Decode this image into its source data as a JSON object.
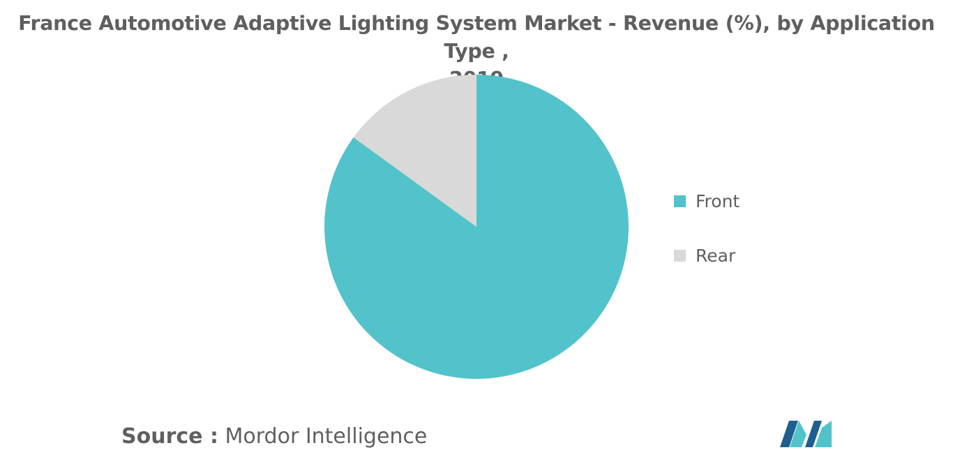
{
  "chart_data": {
    "type": "pie",
    "title_lines": [
      "France Automotive Adaptive Lighting System Market - Revenue (%), by Application Type ,",
      "2019"
    ],
    "categories": [
      "Front",
      "Rear"
    ],
    "values": [
      85,
      15
    ],
    "colors": [
      "#52c3ca",
      "#d9d9d9"
    ],
    "legend_position": "right",
    "start_angle_deg": 0,
    "direction": "clockwise"
  },
  "source": {
    "label": "Source :",
    "value": "Mordor Intelligence"
  },
  "logo": {
    "icon": "mordor-intelligence-logo-icon",
    "colors": [
      "#1f5f8f",
      "#52c3ca"
    ]
  }
}
